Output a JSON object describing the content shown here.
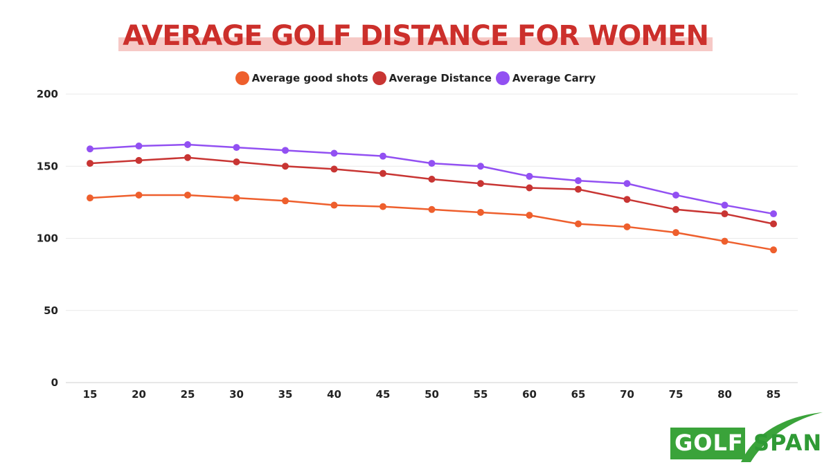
{
  "title": "AVERAGE GOLF DISTANCE FOR WOMEN",
  "logo": {
    "part1": "GOLF",
    "part2": "SPAN"
  },
  "colors": {
    "good_shots": "#ee5f2d",
    "distance": "#c83533",
    "carry": "#9250f2",
    "title": "#cc2f2b",
    "title_highlight": "#f6c9c6",
    "logo_green": "#3aa33a",
    "grid": "#e9e9e9"
  },
  "chart_data": {
    "type": "line",
    "title": "AVERAGE GOLF DISTANCE FOR WOMEN",
    "xlabel": "",
    "ylabel": "",
    "x": [
      15,
      20,
      25,
      30,
      35,
      40,
      45,
      50,
      55,
      60,
      65,
      70,
      75,
      80,
      85
    ],
    "ylim": [
      0,
      200
    ],
    "yticks": [
      0,
      50,
      100,
      150,
      200
    ],
    "grid": true,
    "legend_position": "top-center",
    "series": [
      {
        "name": "Average good shots",
        "color": "#ee5f2d",
        "values": [
          128,
          130,
          130,
          128,
          126,
          123,
          122,
          120,
          118,
          116,
          110,
          108,
          104,
          98,
          92
        ]
      },
      {
        "name": "Average Distance",
        "color": "#c83533",
        "values": [
          152,
          154,
          156,
          153,
          150,
          148,
          145,
          141,
          138,
          135,
          134,
          127,
          120,
          117,
          110
        ]
      },
      {
        "name": "Average Carry",
        "color": "#9250f2",
        "values": [
          162,
          164,
          165,
          163,
          161,
          159,
          157,
          152,
          150,
          143,
          140,
          138,
          130,
          123,
          117
        ]
      }
    ]
  }
}
